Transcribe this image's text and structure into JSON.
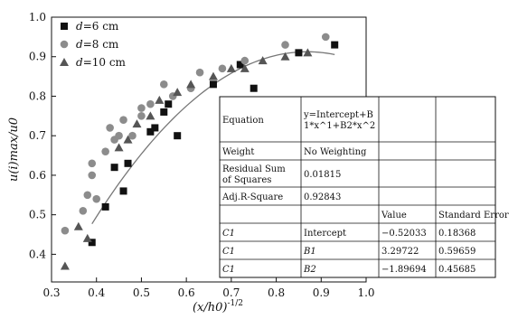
{
  "chart_data": {
    "type": "scatter",
    "xlabel": "(x/h0)^-1/2",
    "ylabel": "u(i)max/u0",
    "xlim": [
      0.3,
      1.0
    ],
    "ylim": [
      0.33,
      1.0
    ],
    "x_ticks": [
      "0.3",
      "0.4",
      "0.5",
      "0.6",
      "0.7",
      "0.8",
      "0.9",
      "1.0"
    ],
    "y_ticks": [
      "0.4",
      "0.5",
      "0.6",
      "0.7",
      "0.8",
      "0.9",
      "1.0"
    ],
    "grid": false,
    "legend_position": "top-left",
    "series": [
      {
        "name": "d=6 cm",
        "marker": "square",
        "color": "#111111",
        "points": [
          [
            0.39,
            0.43
          ],
          [
            0.42,
            0.52
          ],
          [
            0.44,
            0.62
          ],
          [
            0.46,
            0.56
          ],
          [
            0.47,
            0.63
          ],
          [
            0.52,
            0.71
          ],
          [
            0.53,
            0.72
          ],
          [
            0.55,
            0.76
          ],
          [
            0.56,
            0.78
          ],
          [
            0.58,
            0.7
          ],
          [
            0.66,
            0.83
          ],
          [
            0.72,
            0.88
          ],
          [
            0.75,
            0.82
          ],
          [
            0.85,
            0.91
          ],
          [
            0.93,
            0.93
          ]
        ]
      },
      {
        "name": "d=8 cm",
        "marker": "circle",
        "color": "#8c8c8c",
        "points": [
          [
            0.33,
            0.46
          ],
          [
            0.37,
            0.51
          ],
          [
            0.38,
            0.55
          ],
          [
            0.39,
            0.6
          ],
          [
            0.39,
            0.63
          ],
          [
            0.4,
            0.54
          ],
          [
            0.42,
            0.66
          ],
          [
            0.43,
            0.72
          ],
          [
            0.44,
            0.69
          ],
          [
            0.45,
            0.7
          ],
          [
            0.46,
            0.74
          ],
          [
            0.48,
            0.7
          ],
          [
            0.5,
            0.77
          ],
          [
            0.5,
            0.75
          ],
          [
            0.52,
            0.78
          ],
          [
            0.55,
            0.83
          ],
          [
            0.57,
            0.8
          ],
          [
            0.61,
            0.82
          ],
          [
            0.63,
            0.86
          ],
          [
            0.68,
            0.87
          ],
          [
            0.73,
            0.89
          ],
          [
            0.82,
            0.93
          ],
          [
            0.91,
            0.95
          ]
        ]
      },
      {
        "name": "d=10 cm",
        "marker": "triangle",
        "color": "#555555",
        "points": [
          [
            0.33,
            0.37
          ],
          [
            0.36,
            0.47
          ],
          [
            0.38,
            0.44
          ],
          [
            0.45,
            0.67
          ],
          [
            0.47,
            0.69
          ],
          [
            0.49,
            0.73
          ],
          [
            0.52,
            0.75
          ],
          [
            0.54,
            0.79
          ],
          [
            0.58,
            0.81
          ],
          [
            0.61,
            0.83
          ],
          [
            0.66,
            0.85
          ],
          [
            0.7,
            0.87
          ],
          [
            0.73,
            0.87
          ],
          [
            0.77,
            0.89
          ],
          [
            0.82,
            0.9
          ],
          [
            0.87,
            0.91
          ]
        ]
      }
    ],
    "fit": {
      "equation": "y = -0.52033 + 3.29722*x - 1.89694*x^2",
      "intercept": -0.52033,
      "b1": 3.29722,
      "b2": -1.89694,
      "x_range": [
        0.39,
        0.93
      ]
    },
    "fit_table": {
      "rows": [
        [
          "Equation",
          "y=Intercept+B\n1*x^1+B2*x^2",
          "",
          ""
        ],
        [
          "Weight",
          "No Weighting",
          "",
          ""
        ],
        [
          "Residual Sum\nof Squares",
          "0.01815",
          "",
          ""
        ],
        [
          "Adj.R-Square",
          "0.92843",
          "",
          ""
        ],
        [
          "",
          "",
          "Value",
          "Standard Error"
        ],
        [
          "C1",
          "Intercept",
          "−0.52033",
          "0.18368"
        ],
        [
          "C1",
          "B1",
          "3.29722",
          "0.59659"
        ],
        [
          "C1",
          "B2",
          "−1.89694",
          "0.45685"
        ]
      ]
    }
  }
}
